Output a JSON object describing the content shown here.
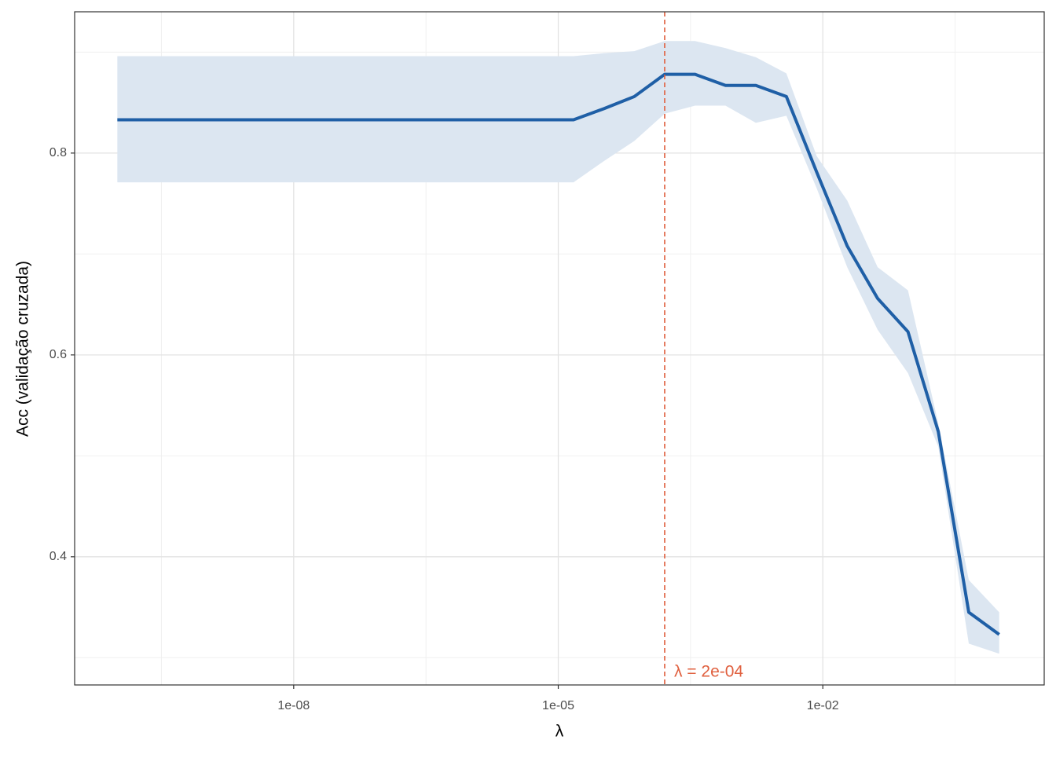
{
  "chart_data": {
    "type": "line",
    "x_label": "λ",
    "y_label": "Acc (validação cruzada)",
    "x": [
      1e-10,
      2.21e-10,
      4.89e-10,
      1.08e-09,
      2.39e-09,
      5.3e-09,
      1.17e-08,
      2.59e-08,
      5.74e-08,
      1.27e-07,
      2.81e-07,
      6.21e-07,
      1.37e-06,
      3.04e-06,
      6.72e-06,
      1.49e-05,
      3.29e-05,
      7.28e-05,
      0.000161,
      0.000356,
      0.000788,
      0.00174,
      0.00386,
      0.00853,
      0.0189,
      0.0418,
      0.0924,
      0.204,
      0.452,
      1
    ],
    "values": [
      0.833,
      0.833,
      0.833,
      0.833,
      0.833,
      0.833,
      0.833,
      0.833,
      0.833,
      0.833,
      0.833,
      0.833,
      0.833,
      0.833,
      0.833,
      0.833,
      0.844,
      0.856,
      0.878,
      0.878,
      0.867,
      0.867,
      0.856,
      0.781,
      0.708,
      0.656,
      0.623,
      0.524,
      0.345,
      0.323
    ],
    "upper": [
      0.896,
      0.896,
      0.896,
      0.896,
      0.896,
      0.896,
      0.896,
      0.896,
      0.896,
      0.896,
      0.896,
      0.896,
      0.896,
      0.896,
      0.896,
      0.896,
      0.899,
      0.901,
      0.911,
      0.911,
      0.904,
      0.895,
      0.879,
      0.797,
      0.753,
      0.687,
      0.664,
      0.532,
      0.377,
      0.345
    ],
    "lower": [
      0.771,
      0.771,
      0.771,
      0.771,
      0.771,
      0.771,
      0.771,
      0.771,
      0.771,
      0.771,
      0.771,
      0.771,
      0.771,
      0.771,
      0.771,
      0.771,
      0.792,
      0.812,
      0.839,
      0.847,
      0.847,
      0.83,
      0.837,
      0.765,
      0.687,
      0.625,
      0.582,
      0.509,
      0.314,
      0.304
    ],
    "color": "#1f5fa6",
    "band_color": "#dce6f1",
    "vline": 0.000161,
    "vline_color": "#e0603f",
    "annotation": "λ = 2e-04",
    "xlog": true,
    "xlim": [
      3.28e-11,
      3.24
    ],
    "xticks": [
      {
        "value": 1e-08,
        "label": "1e-08"
      },
      {
        "value": 1e-05,
        "label": "1e-05"
      },
      {
        "value": 0.01,
        "label": "1e-02"
      }
    ],
    "ylim": [
      0.273,
      0.94
    ],
    "yticks": [
      0.4,
      0.6,
      0.8
    ],
    "grid": true
  }
}
